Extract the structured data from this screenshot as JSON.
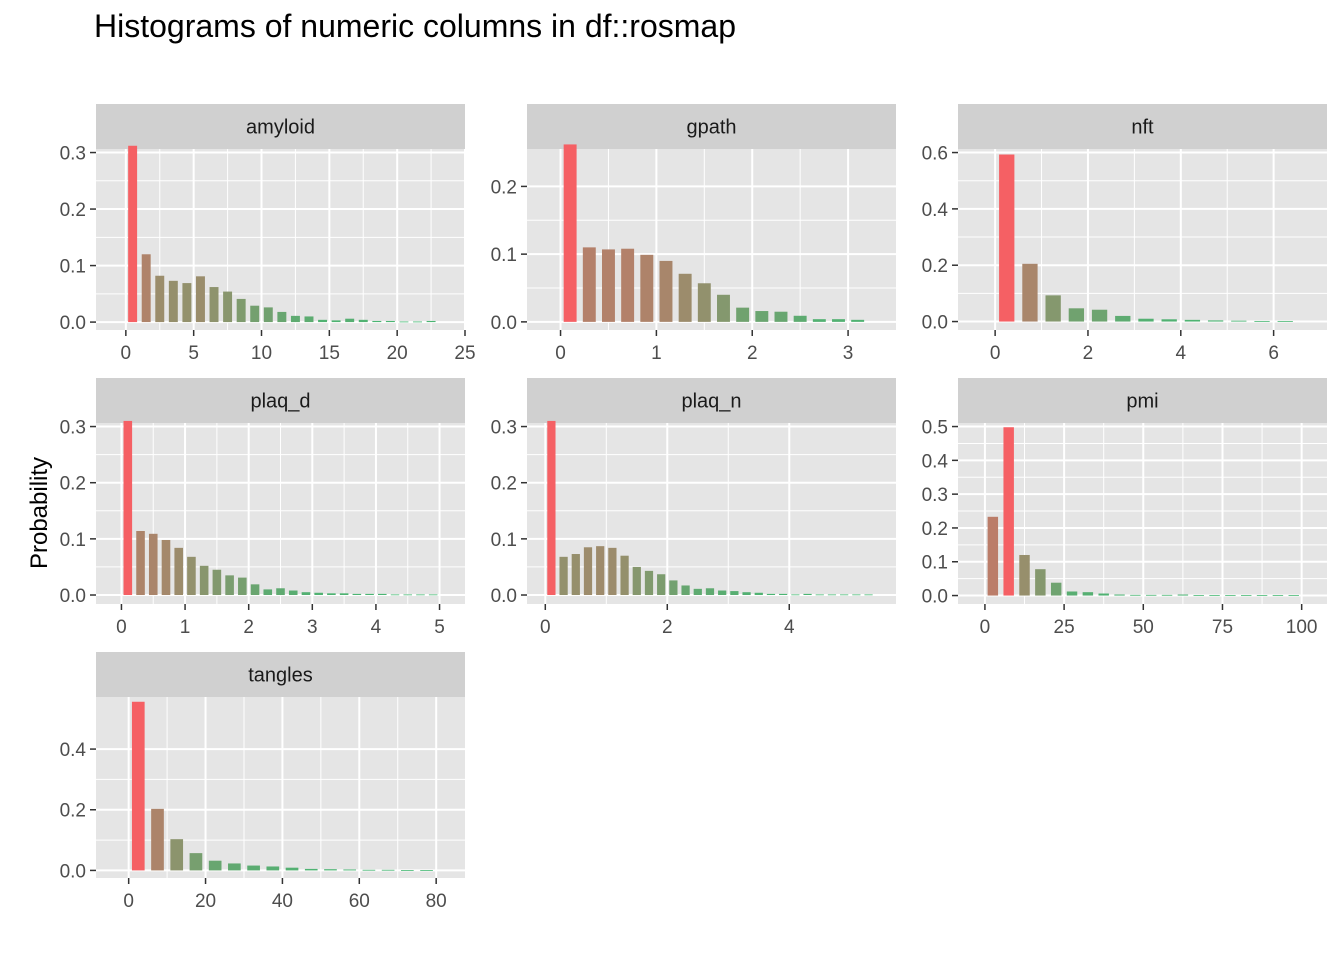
{
  "title": "Histograms of numeric columns in df::rosmap",
  "ylabel": "Probability",
  "colors": {
    "panel_bg": "#e5e5e5",
    "strip_bg": "#d0d0d0",
    "grid": "#ffffff",
    "high": "#f56064",
    "low": "#3cbc74"
  },
  "chart_data": [
    {
      "type": "bar",
      "facet": "amyloid",
      "x": [
        0.5,
        1.5,
        2.5,
        3.5,
        4.5,
        5.5,
        6.5,
        7.5,
        8.5,
        9.5,
        10.5,
        11.5,
        12.5,
        13.5,
        14.5,
        15.5,
        16.5,
        17.5,
        18.5,
        19.5,
        20.5,
        21.5,
        22.5
      ],
      "values": [
        0.312,
        0.12,
        0.082,
        0.073,
        0.069,
        0.081,
        0.062,
        0.054,
        0.041,
        0.029,
        0.026,
        0.018,
        0.011,
        0.01,
        0.004,
        0.003,
        0.006,
        0.004,
        0.002,
        0.002,
        0.001,
        0.001,
        0.002
      ],
      "bar_width": 0.66,
      "xlim": [
        -2.2,
        25
      ],
      "ylim": [
        -0.014,
        0.3
      ],
      "xticks": [
        0,
        5,
        10,
        15,
        20,
        25
      ],
      "yticks": [
        0.0,
        0.1,
        0.2,
        0.3
      ]
    },
    {
      "type": "bar",
      "facet": "gpath",
      "x": [
        0.1,
        0.3,
        0.5,
        0.7,
        0.9,
        1.1,
        1.3,
        1.5,
        1.7,
        1.9,
        2.1,
        2.3,
        2.5,
        2.7,
        2.9,
        3.1
      ],
      "values": [
        0.262,
        0.11,
        0.107,
        0.108,
        0.099,
        0.09,
        0.071,
        0.057,
        0.04,
        0.021,
        0.016,
        0.015,
        0.009,
        0.004,
        0.004,
        0.003
      ],
      "bar_width": 0.135,
      "xlim": [
        -0.35,
        3.5
      ],
      "ylim": [
        -0.012,
        0.25
      ],
      "xticks": [
        0,
        1,
        2,
        3
      ],
      "yticks": [
        0.0,
        0.1,
        0.2
      ]
    },
    {
      "type": "bar",
      "facet": "nft",
      "x": [
        0.25,
        0.75,
        1.25,
        1.75,
        2.25,
        2.75,
        3.25,
        3.75,
        4.25,
        4.75,
        5.25,
        5.75,
        6.25
      ],
      "values": [
        0.593,
        0.205,
        0.093,
        0.047,
        0.042,
        0.02,
        0.01,
        0.008,
        0.006,
        0.004,
        0.003,
        0.002,
        0.002
      ],
      "bar_width": 0.33,
      "xlim": [
        -0.8,
        7.15
      ],
      "ylim": [
        -0.03,
        0.6
      ],
      "xticks": [
        0,
        2,
        4,
        6
      ],
      "yticks": [
        0.0,
        0.2,
        0.4,
        0.6
      ]
    },
    {
      "type": "bar",
      "facet": "plaq_d",
      "x": [
        0.1,
        0.3,
        0.5,
        0.7,
        0.9,
        1.1,
        1.3,
        1.5,
        1.7,
        1.9,
        2.1,
        2.3,
        2.5,
        2.7,
        2.9,
        3.1,
        3.3,
        3.5,
        3.7,
        3.9,
        4.1,
        4.3,
        4.5,
        4.7,
        4.9
      ],
      "values": [
        0.31,
        0.114,
        0.109,
        0.098,
        0.084,
        0.068,
        0.052,
        0.045,
        0.035,
        0.031,
        0.019,
        0.01,
        0.012,
        0.008,
        0.005,
        0.004,
        0.003,
        0.003,
        0.002,
        0.002,
        0.002,
        0.001,
        0.001,
        0.001,
        0.001
      ],
      "bar_width": 0.135,
      "xlim": [
        -0.4,
        5.4
      ],
      "ylim": [
        -0.016,
        0.3
      ],
      "xticks": [
        0,
        1,
        2,
        3,
        4,
        5
      ],
      "yticks": [
        0.0,
        0.1,
        0.2,
        0.3
      ]
    },
    {
      "type": "bar",
      "facet": "plaq_n",
      "x": [
        0.1,
        0.3,
        0.5,
        0.7,
        0.9,
        1.1,
        1.3,
        1.5,
        1.7,
        1.9,
        2.1,
        2.3,
        2.5,
        2.7,
        2.9,
        3.1,
        3.3,
        3.5,
        3.7,
        3.9,
        4.1,
        4.3,
        4.5,
        4.7,
        4.9,
        5.1,
        5.3
      ],
      "values": [
        0.31,
        0.068,
        0.073,
        0.085,
        0.087,
        0.084,
        0.07,
        0.05,
        0.043,
        0.037,
        0.026,
        0.017,
        0.011,
        0.012,
        0.008,
        0.007,
        0.005,
        0.004,
        0.002,
        0.002,
        0.001,
        0.002,
        0.001,
        0.001,
        0.001,
        0.001,
        0.001
      ],
      "bar_width": 0.135,
      "xlim": [
        -0.3,
        5.75
      ],
      "ylim": [
        -0.016,
        0.3
      ],
      "xticks": [
        0,
        2,
        4
      ],
      "yticks": [
        0.0,
        0.1,
        0.2,
        0.3
      ]
    },
    {
      "type": "bar",
      "facet": "pmi",
      "x": [
        2.5,
        7.5,
        12.5,
        17.5,
        22.5,
        27.5,
        32.5,
        37.5,
        42.5,
        47.5,
        52.5,
        57.5,
        62.5,
        67.5,
        72.5,
        77.5,
        82.5,
        87.5,
        92.5,
        97.5
      ],
      "values": [
        0.233,
        0.498,
        0.12,
        0.078,
        0.038,
        0.012,
        0.01,
        0.006,
        0.003,
        0.002,
        0.002,
        0.002,
        0.003,
        0.001,
        0.001,
        0.001,
        0.001,
        0.001,
        0.001,
        0.001
      ],
      "bar_width": 3.3,
      "xlim": [
        -8.5,
        108
      ],
      "ylim": [
        -0.025,
        0.5
      ],
      "xticks": [
        0,
        25,
        50,
        75,
        100
      ],
      "yticks": [
        0.0,
        0.1,
        0.2,
        0.3,
        0.4,
        0.5
      ]
    },
    {
      "type": "bar",
      "facet": "tangles",
      "x": [
        2.5,
        7.5,
        12.5,
        17.5,
        22.5,
        27.5,
        32.5,
        37.5,
        42.5,
        47.5,
        52.5,
        57.5,
        62.5,
        67.5,
        72.5,
        77.5
      ],
      "values": [
        0.556,
        0.203,
        0.103,
        0.057,
        0.032,
        0.023,
        0.016,
        0.013,
        0.009,
        0.005,
        0.004,
        0.003,
        0.002,
        0.002,
        0.001,
        0.001
      ],
      "bar_width": 3.3,
      "xlim": [
        -8.5,
        87.5
      ],
      "ylim": [
        -0.025,
        0.56
      ],
      "xticks": [
        0,
        20,
        40,
        60,
        80
      ],
      "yticks": [
        0.0,
        0.2,
        0.4
      ]
    }
  ]
}
